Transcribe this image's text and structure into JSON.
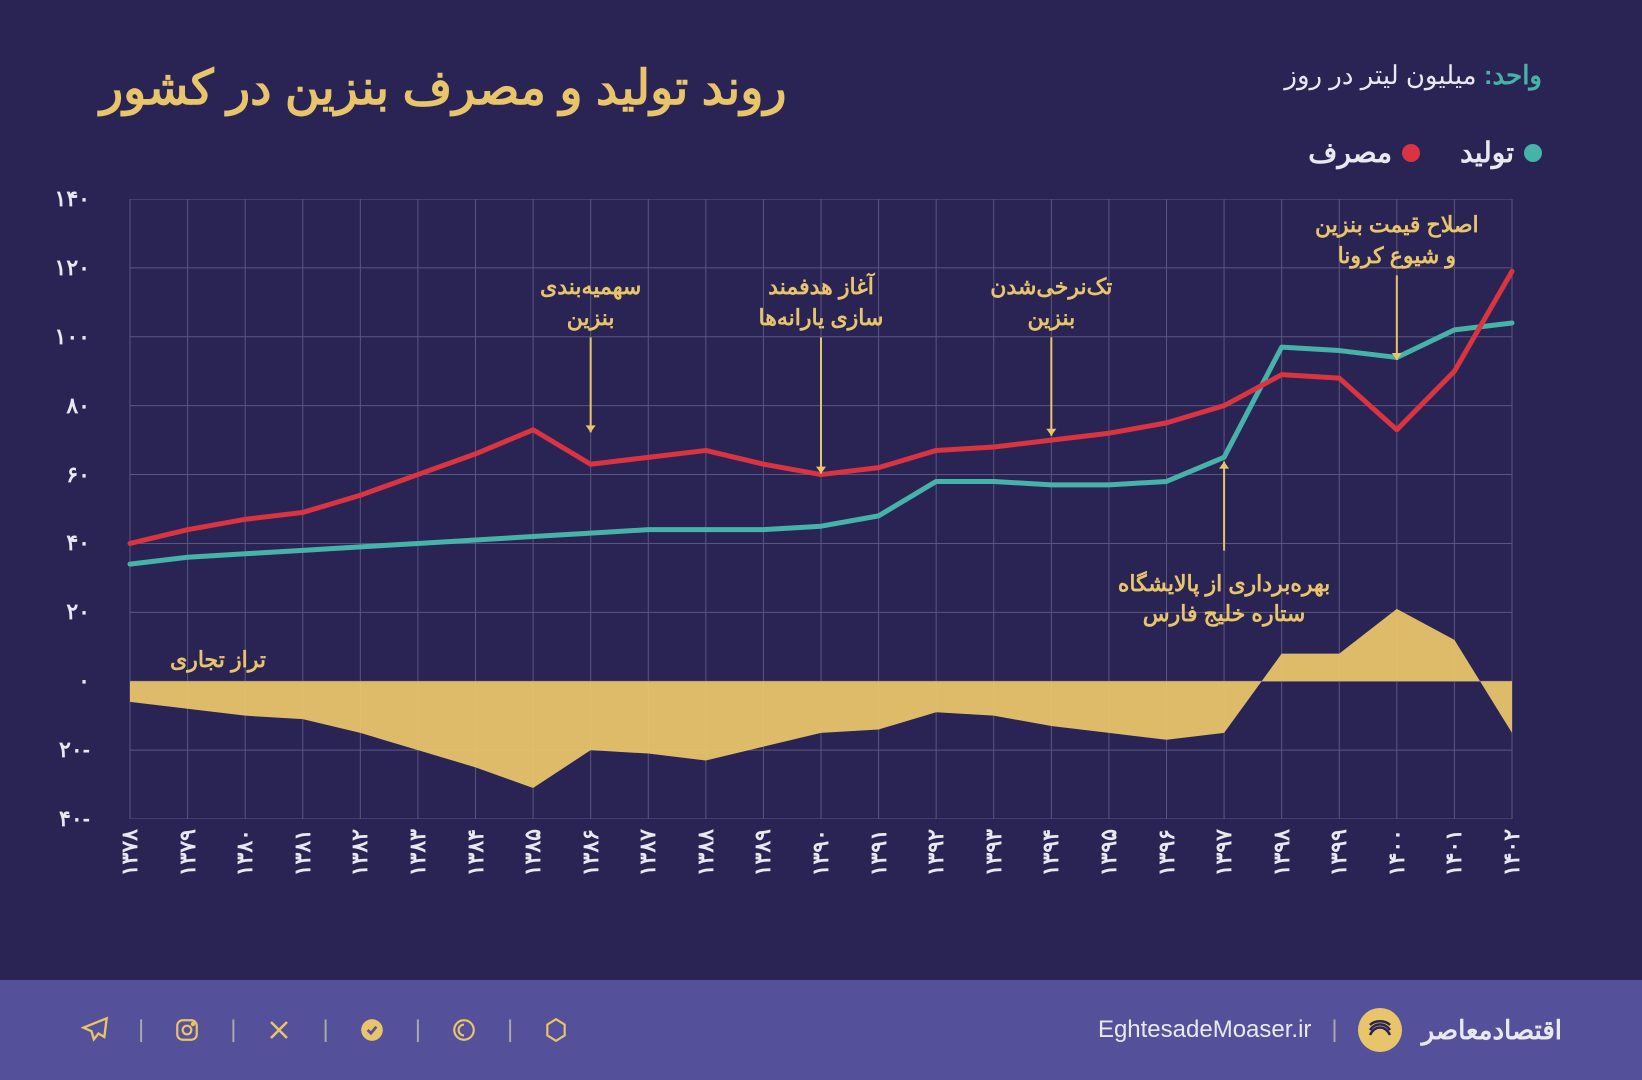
{
  "title": "روند تولید و مصرف بنزین در کشور",
  "unit_prefix": "واحد:",
  "unit_value": "میلیون لیتر در روز",
  "legend": {
    "production": "تولید",
    "consumption": "مصرف"
  },
  "balance_label": "تراز تجاری",
  "footer": {
    "brand": "اقتصادمعاصر",
    "site": "EghtesadeMoaser.ir"
  },
  "chart": {
    "type": "line+area",
    "background_color": "#2a2455",
    "grid_color": "#5a567f",
    "axis_color": "#888",
    "years": [
      "۱۳۷۸",
      "۱۳۷۹",
      "۱۳۸۰",
      "۱۳۸۱",
      "۱۳۸۲",
      "۱۳۸۳",
      "۱۳۸۴",
      "۱۳۸۵",
      "۱۳۸۶",
      "۱۳۸۷",
      "۱۳۸۸",
      "۱۳۸۹",
      "۱۳۹۰",
      "۱۳۹۱",
      "۱۳۹۲",
      "۱۳۹۳",
      "۱۳۹۴",
      "۱۳۹۵",
      "۱۳۹۶",
      "۱۳۹۷",
      "۱۳۹۸",
      "۱۳۹۹",
      "۱۴۰۰",
      "۱۴۰۱",
      "۱۴۰۲"
    ],
    "ylim": [
      -40,
      140
    ],
    "ytick_step": 20,
    "yticks": [
      "-۴۰",
      "-۲۰",
      "۰",
      "۲۰",
      "۴۰",
      "۶۰",
      "۸۰",
      "۱۰۰",
      "۱۲۰",
      "۱۴۰"
    ],
    "series": {
      "production": {
        "color": "#46b3a8",
        "line_width": 5,
        "values": [
          34,
          36,
          37,
          38,
          39,
          40,
          41,
          42,
          43,
          44,
          44,
          44,
          45,
          48,
          58,
          58,
          57,
          57,
          58,
          65,
          97,
          96,
          94,
          102,
          104
        ]
      },
      "consumption": {
        "color": "#d9343f",
        "line_width": 5,
        "values": [
          40,
          44,
          47,
          49,
          54,
          60,
          66,
          73,
          63,
          65,
          67,
          63,
          60,
          62,
          67,
          68,
          70,
          72,
          75,
          80,
          89,
          88,
          73,
          90,
          119
        ]
      },
      "balance": {
        "fill_color": "#e8c46a",
        "fill_opacity": 0.95,
        "values": [
          -6,
          -8,
          -10,
          -11,
          -15,
          -20,
          -25,
          -31,
          -20,
          -21,
          -23,
          -19,
          -15,
          -14,
          -9,
          -10,
          -13,
          -15,
          -17,
          -15,
          8,
          8,
          21,
          12,
          -15
        ]
      }
    },
    "annotations": [
      {
        "text_lines": [
          "سهمیه‌بندی",
          "بنزین"
        ],
        "year_index": 8,
        "y": 110,
        "arrow_to_y": 74
      },
      {
        "text_lines": [
          "آغاز هدفمند",
          "سازی یارانه‌ها"
        ],
        "year_index": 12,
        "y": 110,
        "arrow_to_y": 62
      },
      {
        "text_lines": [
          "تک‌نرخی‌شدن",
          "بنزین"
        ],
        "year_index": 16,
        "y": 110,
        "arrow_to_y": 73
      },
      {
        "text_lines": [
          "بهره‌برداری از پالایشگاه",
          "ستاره خلیج فارس"
        ],
        "year_index": 19,
        "y": 35,
        "arrow_to_y": 62,
        "below": true
      },
      {
        "text_lines": [
          "اصلاح قیمت بنزین",
          "و شیوع کرونا"
        ],
        "year_index": 22,
        "y": 128,
        "arrow_to_y": 95
      }
    ],
    "title_fontsize": 48,
    "label_fontsize": 22,
    "legend_fontsize": 28
  },
  "colors": {
    "bg": "#2a2455",
    "footer_bg": "#55509a",
    "gold": "#e8c46a",
    "teal": "#46b3a8",
    "red": "#d9343f",
    "text": "#e8e8f0"
  }
}
